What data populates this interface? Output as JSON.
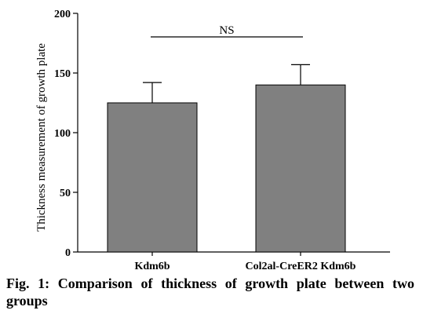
{
  "chart_data": {
    "type": "bar",
    "categories": [
      "Kdm6b",
      "Col2al-CreER2 Kdm6b"
    ],
    "values": [
      125,
      140
    ],
    "error_upper": [
      142,
      157
    ],
    "ylabel": "Thickness measurement of growth plate",
    "xlabel": "",
    "ylim": [
      0,
      200
    ],
    "yticks": [
      0,
      50,
      100,
      150,
      200
    ],
    "grid": false,
    "annotations": [
      {
        "text": "NS",
        "type": "significance-bracket",
        "between": [
          "Kdm6b",
          "Col2al-CreER2 Kdm6b"
        ]
      }
    ],
    "colors": {
      "bar": "#808080"
    }
  },
  "caption": "Fig. 1: Comparison of thickness of growth plate between two groups"
}
